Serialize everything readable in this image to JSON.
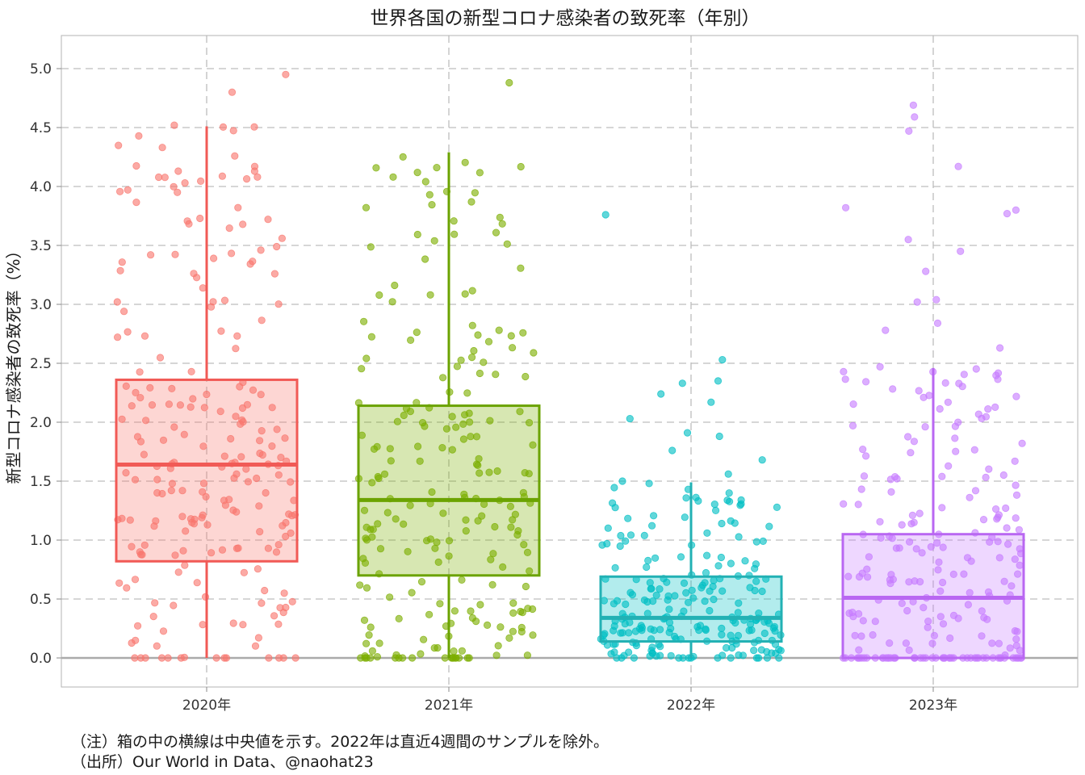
{
  "title": "世界各国の新型コロナ感染者の致死率（年別）",
  "notes": {
    "note": "（注）箱の中の横線は中央値を示す。2022年は直近4週間のサンプルを除外。",
    "source": "（出所）Our World in Data、@naohat23"
  },
  "chart_data": {
    "type": "box",
    "title": "世界各国の新型コロナ感染者の致死率（年別）",
    "xlabel": "",
    "ylabel": "新型コロナ感染者の致死率（%）",
    "ylim": [
      -0.25,
      5.25
    ],
    "yticks": [
      "0.0",
      "0.5",
      "1.0",
      "1.5",
      "2.0",
      "2.5",
      "3.0",
      "3.5",
      "4.0",
      "4.5",
      "5.0"
    ],
    "grid": true,
    "categories": [
      "2020年",
      "2021年",
      "2022年",
      "2023年"
    ],
    "colors": [
      "#f8766d",
      "#7cae00",
      "#00bfc4",
      "#c77cff"
    ],
    "box_colors": [
      "#f15a56",
      "#6ba300",
      "#22b1b4",
      "#b967f2"
    ],
    "boxes": [
      {
        "category": "2020年",
        "whisker_low": 0.0,
        "q1": 0.82,
        "median": 1.64,
        "q3": 2.36,
        "whisker_high": 4.51
      },
      {
        "category": "2021年",
        "whisker_low": 0.0,
        "q1": 0.7,
        "median": 1.34,
        "q3": 2.14,
        "whisker_high": 4.29
      },
      {
        "category": "2022年",
        "whisker_low": 0.0,
        "q1": 0.14,
        "median": 0.34,
        "q3": 0.69,
        "whisker_high": 1.49
      },
      {
        "category": "2023年",
        "whisker_low": 0.0,
        "q1": 0.0,
        "median": 0.51,
        "q3": 1.05,
        "whisker_high": 2.46
      }
    ],
    "outliers": [
      {
        "category": "2020年",
        "values": [
          4.8,
          4.95,
          4.17,
          4.08,
          4.52,
          4.13
        ]
      },
      {
        "category": "2021年",
        "values": [
          4.88,
          4.16,
          4.08
        ]
      },
      {
        "category": "2022年",
        "values": [
          3.76,
          2.53,
          2.35,
          2.33,
          2.24,
          2.17,
          2.03,
          1.91,
          1.88,
          1.76,
          1.68,
          1.56,
          1.5
        ]
      },
      {
        "category": "2023年",
        "values": [
          4.69,
          4.59,
          4.47,
          4.17,
          3.82,
          3.8,
          3.77,
          3.55,
          3.45,
          3.28,
          3.04,
          3.02,
          2.84,
          2.78,
          2.63,
          2.47
        ]
      }
    ]
  }
}
